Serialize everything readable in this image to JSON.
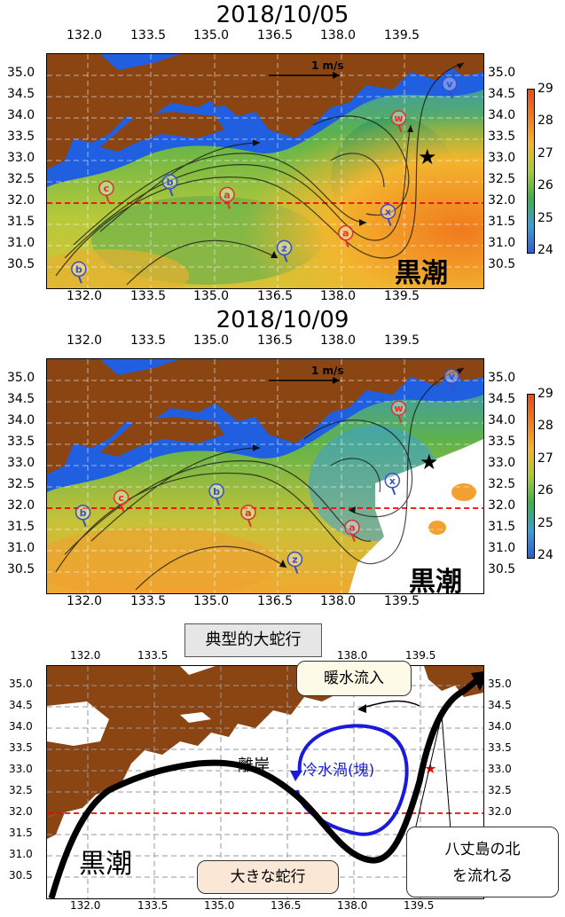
{
  "panel1": {
    "title": "2018/10/05",
    "kuroshio_label": "黒潮",
    "scale_label": "1 m/s",
    "buoys": [
      {
        "id": "b",
        "color": "#3a4fc4",
        "lon": 131.8,
        "lat": 30.5
      },
      {
        "id": "c",
        "color": "#e03030",
        "lon": 132.45,
        "lat": 32.4
      },
      {
        "id": "b",
        "color": "#3a4fc4",
        "lon": 133.95,
        "lat": 32.55
      },
      {
        "id": "a",
        "color": "#e03030",
        "lon": 135.3,
        "lat": 32.25
      },
      {
        "id": "z",
        "color": "#3a4fc4",
        "lon": 136.65,
        "lat": 31.0
      },
      {
        "id": "a",
        "color": "#e03030",
        "lon": 138.1,
        "lat": 31.35
      },
      {
        "id": "x",
        "color": "#3a4fc4",
        "lon": 139.1,
        "lat": 31.85
      },
      {
        "id": "w",
        "color": "#e03030",
        "lon": 139.35,
        "lat": 34.05
      },
      {
        "id": "v",
        "color": "#3a4fc4",
        "lon": 140.55,
        "lat": 34.85
      }
    ]
  },
  "panel2": {
    "title": "2018/10/09",
    "kuroshio_label": "黒潮",
    "scale_label": "1 m/s",
    "buoys": [
      {
        "id": "b",
        "color": "#3a4fc4",
        "lon": 131.9,
        "lat": 31.95
      },
      {
        "id": "c",
        "color": "#e03030",
        "lon": 132.8,
        "lat": 32.3
      },
      {
        "id": "b",
        "color": "#3a4fc4",
        "lon": 135.05,
        "lat": 32.45
      },
      {
        "id": "a",
        "color": "#e03030",
        "lon": 135.8,
        "lat": 31.95
      },
      {
        "id": "z",
        "color": "#3a4fc4",
        "lon": 136.9,
        "lat": 30.85
      },
      {
        "id": "a",
        "color": "#e03030",
        "lon": 138.25,
        "lat": 31.6
      },
      {
        "id": "x",
        "color": "#3a4fc4",
        "lon": 139.2,
        "lat": 32.7
      },
      {
        "id": "w",
        "color": "#e03030",
        "lon": 139.35,
        "lat": 34.4
      },
      {
        "id": "v",
        "color": "#3a4fc4",
        "lon": 140.6,
        "lat": 35.15
      }
    ]
  },
  "axes": {
    "lon_ticks": [
      "132.0",
      "133.5",
      "135.0",
      "136.5",
      "138.0",
      "139.5"
    ],
    "lat_ticks": [
      "35.0",
      "34.5",
      "34.0",
      "33.5",
      "33.0",
      "32.5",
      "32.0",
      "31.5",
      "31.0",
      "30.5"
    ],
    "colorbar_ticks": [
      "29",
      "28",
      "27",
      "26",
      "25",
      "24"
    ],
    "colorbar_range": [
      24,
      29
    ],
    "colorbar_colors": [
      "#2b5fd8",
      "#3a9edc",
      "#3cb04a",
      "#a9c93a",
      "#f2b52e",
      "#f07a1e",
      "#e84e1a"
    ]
  },
  "schematic": {
    "title": "典型的大蛇行",
    "labels": {
      "warm_inflow": "暖水流入",
      "away_from_coast": "離岸",
      "cold_eddy": "冷水渦(塊)",
      "big_meander": "大きな蛇行",
      "hachijo_line1": "八丈島の北",
      "hachijo_line2": "を流れる",
      "kuroshio": "黒潮"
    }
  },
  "colors": {
    "land": "#8b4513",
    "cold_water": "#1f5fe0",
    "warm_water": "#f09030",
    "red_line": "#ff0000",
    "eddy_blue": "#1a1adc"
  }
}
